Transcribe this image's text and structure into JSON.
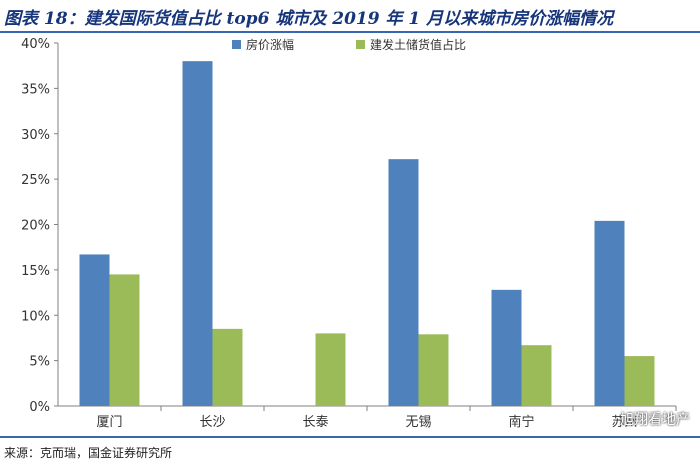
{
  "header": {
    "title": "图表 18：建发国际货值占比 top6 城市及 2019 年 1 月以来城市房价涨幅情况"
  },
  "footer": {
    "source": "来源：克而瑞，国金证券研究所"
  },
  "watermark": {
    "text": "旭翔看地产"
  },
  "chart_data": {
    "type": "bar",
    "title": "",
    "xlabel": "",
    "ylabel": "",
    "ylim": [
      0,
      40
    ],
    "y_ticks": [
      "0%",
      "5%",
      "10%",
      "15%",
      "20%",
      "25%",
      "30%",
      "35%",
      "40%"
    ],
    "grid": false,
    "legend_position": "top",
    "categories": [
      "厦门",
      "长沙",
      "长泰",
      "无锡",
      "南宁",
      "苏州"
    ],
    "series": [
      {
        "name": "房价涨幅",
        "color": "#4f81bd",
        "values": [
          16.7,
          38.0,
          null,
          27.2,
          12.8,
          20.4
        ]
      },
      {
        "name": "建发土储货值占比",
        "color": "#9bbb59",
        "values": [
          14.5,
          8.5,
          8.0,
          7.9,
          6.7,
          5.5
        ]
      }
    ]
  }
}
